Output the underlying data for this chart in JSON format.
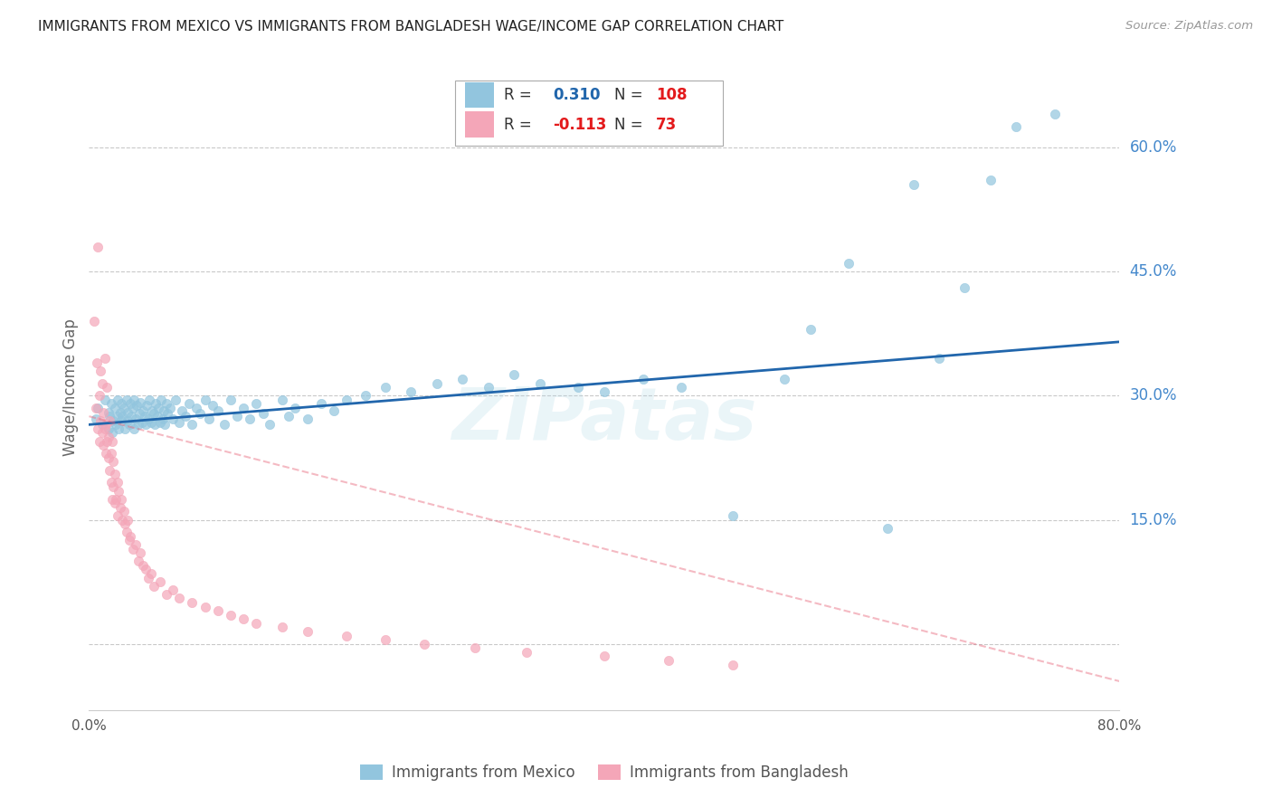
{
  "title": "IMMIGRANTS FROM MEXICO VS IMMIGRANTS FROM BANGLADESH WAGE/INCOME GAP CORRELATION CHART",
  "source": "Source: ZipAtlas.com",
  "ylabel": "Wage/Income Gap",
  "mexico_R": 0.31,
  "mexico_N": 108,
  "bangladesh_R": -0.113,
  "bangladesh_N": 73,
  "mexico_color": "#92c5de",
  "bangladesh_color": "#f4a6b8",
  "trend_mexico_color": "#2166ac",
  "trend_bangladesh_color": "#e8667a",
  "background_color": "#ffffff",
  "grid_color": "#bbbbbb",
  "title_color": "#222222",
  "axis_label_color": "#4488cc",
  "watermark": "ZIPatas",
  "xlim": [
    0.0,
    0.8
  ],
  "ylim": [
    -0.08,
    0.7
  ],
  "yticks": [
    0.0,
    0.15,
    0.3,
    0.45,
    0.6
  ],
  "ytick_labels": [
    "",
    "15.0%",
    "30.0%",
    "45.0%",
    "60.0%"
  ],
  "mexico_x": [
    0.005,
    0.007,
    0.01,
    0.012,
    0.015,
    0.015,
    0.016,
    0.017,
    0.018,
    0.019,
    0.02,
    0.021,
    0.022,
    0.022,
    0.023,
    0.024,
    0.025,
    0.025,
    0.026,
    0.027,
    0.028,
    0.029,
    0.03,
    0.03,
    0.031,
    0.032,
    0.033,
    0.034,
    0.035,
    0.035,
    0.036,
    0.037,
    0.038,
    0.039,
    0.04,
    0.041,
    0.042,
    0.043,
    0.044,
    0.045,
    0.046,
    0.047,
    0.048,
    0.049,
    0.05,
    0.051,
    0.052,
    0.053,
    0.054,
    0.055,
    0.056,
    0.057,
    0.058,
    0.059,
    0.06,
    0.061,
    0.063,
    0.065,
    0.067,
    0.07,
    0.072,
    0.075,
    0.078,
    0.08,
    0.083,
    0.086,
    0.09,
    0.093,
    0.096,
    0.1,
    0.105,
    0.11,
    0.115,
    0.12,
    0.125,
    0.13,
    0.135,
    0.14,
    0.15,
    0.155,
    0.16,
    0.17,
    0.18,
    0.19,
    0.2,
    0.215,
    0.23,
    0.25,
    0.27,
    0.29,
    0.31,
    0.33,
    0.35,
    0.38,
    0.4,
    0.43,
    0.46,
    0.5,
    0.54,
    0.56,
    0.59,
    0.62,
    0.64,
    0.66,
    0.68,
    0.7,
    0.72,
    0.75
  ],
  "mexico_y": [
    0.272,
    0.285,
    0.265,
    0.295,
    0.28,
    0.26,
    0.275,
    0.29,
    0.255,
    0.27,
    0.285,
    0.265,
    0.295,
    0.275,
    0.26,
    0.28,
    0.27,
    0.29,
    0.275,
    0.285,
    0.26,
    0.295,
    0.27,
    0.28,
    0.265,
    0.29,
    0.275,
    0.285,
    0.26,
    0.295,
    0.272,
    0.288,
    0.265,
    0.278,
    0.292,
    0.268,
    0.282,
    0.275,
    0.265,
    0.288,
    0.272,
    0.295,
    0.268,
    0.282,
    0.278,
    0.265,
    0.29,
    0.275,
    0.285,
    0.268,
    0.295,
    0.272,
    0.282,
    0.265,
    0.29,
    0.278,
    0.285,
    0.272,
    0.295,
    0.268,
    0.282,
    0.275,
    0.29,
    0.265,
    0.285,
    0.278,
    0.295,
    0.272,
    0.288,
    0.282,
    0.265,
    0.295,
    0.275,
    0.285,
    0.272,
    0.29,
    0.278,
    0.265,
    0.295,
    0.275,
    0.285,
    0.272,
    0.29,
    0.282,
    0.295,
    0.3,
    0.31,
    0.305,
    0.315,
    0.32,
    0.31,
    0.325,
    0.315,
    0.31,
    0.305,
    0.32,
    0.31,
    0.155,
    0.32,
    0.38,
    0.46,
    0.14,
    0.555,
    0.345,
    0.43,
    0.56,
    0.625,
    0.64
  ],
  "bangladesh_x": [
    0.004,
    0.005,
    0.006,
    0.007,
    0.007,
    0.008,
    0.008,
    0.009,
    0.009,
    0.01,
    0.01,
    0.011,
    0.011,
    0.012,
    0.012,
    0.013,
    0.013,
    0.014,
    0.014,
    0.015,
    0.015,
    0.016,
    0.016,
    0.017,
    0.017,
    0.018,
    0.018,
    0.019,
    0.019,
    0.02,
    0.02,
    0.021,
    0.022,
    0.022,
    0.023,
    0.024,
    0.025,
    0.026,
    0.027,
    0.028,
    0.029,
    0.03,
    0.031,
    0.032,
    0.034,
    0.036,
    0.038,
    0.04,
    0.042,
    0.044,
    0.046,
    0.048,
    0.05,
    0.055,
    0.06,
    0.065,
    0.07,
    0.08,
    0.09,
    0.1,
    0.11,
    0.12,
    0.13,
    0.15,
    0.17,
    0.2,
    0.23,
    0.26,
    0.3,
    0.34,
    0.4,
    0.45,
    0.5
  ],
  "bangladesh_y": [
    0.39,
    0.285,
    0.34,
    0.26,
    0.48,
    0.245,
    0.3,
    0.27,
    0.33,
    0.255,
    0.315,
    0.24,
    0.28,
    0.26,
    0.345,
    0.23,
    0.265,
    0.245,
    0.31,
    0.225,
    0.25,
    0.21,
    0.27,
    0.195,
    0.23,
    0.175,
    0.245,
    0.19,
    0.22,
    0.17,
    0.205,
    0.175,
    0.195,
    0.155,
    0.185,
    0.165,
    0.175,
    0.15,
    0.16,
    0.145,
    0.135,
    0.15,
    0.125,
    0.13,
    0.115,
    0.12,
    0.1,
    0.11,
    0.095,
    0.09,
    0.08,
    0.085,
    0.07,
    0.075,
    0.06,
    0.065,
    0.055,
    0.05,
    0.045,
    0.04,
    0.035,
    0.03,
    0.025,
    0.02,
    0.015,
    0.01,
    0.005,
    0.0,
    -0.005,
    -0.01,
    -0.015,
    -0.02,
    -0.025
  ]
}
